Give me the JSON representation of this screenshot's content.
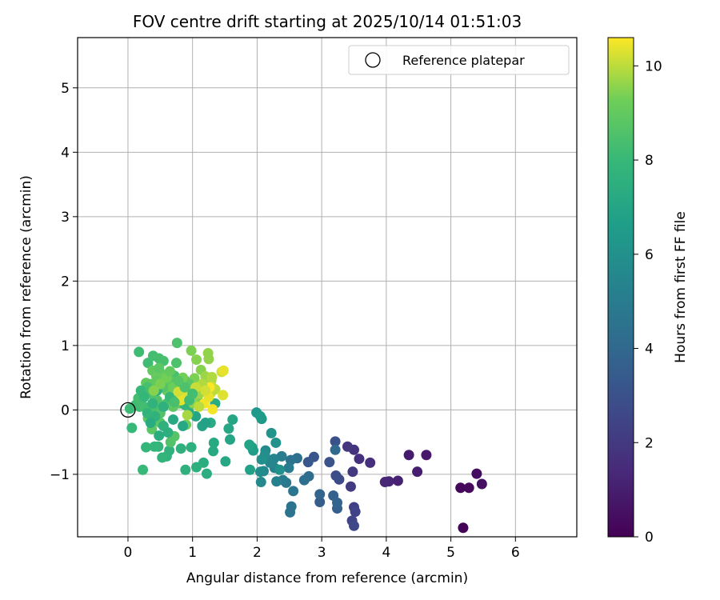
{
  "chart_data": {
    "type": "scatter",
    "title": "FOV centre drift starting at 2025/10/14 01:51:03",
    "xlabel": "Angular distance from reference (arcmin)",
    "ylabel": "Rotation from reference (arcmin)",
    "xlim": [
      -0.78,
      6.95
    ],
    "ylim": [
      -1.97,
      5.78
    ],
    "xticks": [
      0,
      1,
      2,
      3,
      4,
      5,
      6
    ],
    "yticks": [
      -1,
      0,
      1,
      2,
      3,
      4,
      5
    ],
    "grid": true,
    "colorbar": {
      "label": "Hours from first FF file",
      "range": [
        0,
        10.6
      ],
      "ticks": [
        0,
        2,
        4,
        6,
        8,
        10
      ],
      "colormap": "viridis"
    },
    "legend": {
      "position": "top-right",
      "entries": [
        "Reference platepar"
      ]
    },
    "reference_point": {
      "x": 0,
      "y": 0,
      "label": "Reference platepar"
    },
    "series": [
      {
        "name": "FOV centre",
        "points": [
          [
            5.19,
            -1.83,
            0.1
          ],
          [
            5.15,
            -1.21,
            0.2
          ],
          [
            5.28,
            -1.21,
            0.3
          ],
          [
            5.4,
            -0.99,
            0.4
          ],
          [
            5.48,
            -1.15,
            0.5
          ],
          [
            4.62,
            -0.7,
            0.8
          ],
          [
            4.35,
            -0.7,
            0.9
          ],
          [
            4.48,
            -0.96,
            1.0
          ],
          [
            4.18,
            -1.1,
            1.1
          ],
          [
            4.04,
            -1.11,
            1.2
          ],
          [
            3.98,
            -1.12,
            1.3
          ],
          [
            3.75,
            -0.82,
            1.6
          ],
          [
            3.58,
            -0.76,
            1.7
          ],
          [
            3.5,
            -0.62,
            1.8
          ],
          [
            3.4,
            -0.57,
            1.9
          ],
          [
            3.48,
            -0.96,
            2.0
          ],
          [
            3.45,
            -1.19,
            2.1
          ],
          [
            3.5,
            -1.51,
            2.3
          ],
          [
            3.52,
            -1.58,
            2.4
          ],
          [
            3.47,
            -1.72,
            2.5
          ],
          [
            3.5,
            -1.8,
            2.6
          ],
          [
            3.27,
            -1.08,
            2.7
          ],
          [
            3.22,
            -1.02,
            2.8
          ],
          [
            3.21,
            -0.49,
            3.0
          ],
          [
            3.12,
            -0.81,
            3.1
          ],
          [
            2.88,
            -0.73,
            3.2
          ],
          [
            2.79,
            -0.81,
            3.3
          ],
          [
            2.97,
            -1.43,
            3.5
          ],
          [
            3.24,
            -1.53,
            3.6
          ],
          [
            3.18,
            -1.33,
            3.7
          ],
          [
            3.24,
            -1.44,
            3.8
          ],
          [
            2.97,
            -1.31,
            3.9
          ],
          [
            3.21,
            -0.62,
            4.1
          ],
          [
            2.8,
            -1.03,
            4.2
          ],
          [
            2.73,
            -1.09,
            4.3
          ],
          [
            2.62,
            -0.75,
            4.4
          ],
          [
            2.52,
            -0.78,
            4.5
          ],
          [
            2.53,
            -1.5,
            4.6
          ],
          [
            2.51,
            -1.59,
            4.6
          ],
          [
            2.56,
            -1.26,
            4.7
          ],
          [
            2.45,
            -1.13,
            4.8
          ],
          [
            2.4,
            -1.09,
            4.9
          ],
          [
            2.49,
            -0.9,
            5.0
          ],
          [
            2.38,
            -0.72,
            5.1
          ],
          [
            2.3,
            -1.11,
            5.2
          ],
          [
            2.27,
            -0.9,
            5.3
          ],
          [
            2.26,
            -0.76,
            5.4
          ],
          [
            2.2,
            -0.82,
            5.5
          ],
          [
            2.1,
            -0.95,
            5.5
          ],
          [
            2.06,
            -1.12,
            5.6
          ],
          [
            2.13,
            -0.63,
            5.7
          ],
          [
            2.05,
            -0.96,
            5.8
          ],
          [
            2.12,
            -0.7,
            5.9
          ],
          [
            2.07,
            -0.77,
            6.0
          ],
          [
            2.35,
            -0.93,
            6.0
          ],
          [
            2.29,
            -0.51,
            6.1
          ],
          [
            2.22,
            -0.36,
            6.2
          ],
          [
            2.07,
            -0.14,
            6.3
          ],
          [
            1.99,
            -0.04,
            6.4
          ],
          [
            2.05,
            -0.1,
            6.5
          ],
          [
            1.94,
            -0.63,
            6.6
          ],
          [
            1.92,
            -0.58,
            6.7
          ],
          [
            1.89,
            -0.93,
            6.8
          ],
          [
            1.88,
            -0.54,
            6.9
          ],
          [
            1.62,
            -0.15,
            7.0
          ],
          [
            1.58,
            -0.46,
            7.0
          ],
          [
            1.56,
            -0.29,
            7.1
          ],
          [
            1.51,
            -0.8,
            7.1
          ],
          [
            1.33,
            -0.51,
            7.2
          ],
          [
            1.32,
            -0.64,
            7.2
          ],
          [
            1.28,
            -0.2,
            7.3
          ],
          [
            1.35,
            0.1,
            7.3
          ],
          [
            1.22,
            -0.99,
            7.4
          ],
          [
            1.17,
            -0.82,
            7.4
          ],
          [
            1.06,
            -0.89,
            7.5
          ],
          [
            0.98,
            -0.58,
            7.5
          ],
          [
            0.89,
            -0.93,
            7.6
          ],
          [
            0.82,
            -0.6,
            7.6
          ],
          [
            0.64,
            -0.63,
            7.7
          ],
          [
            0.6,
            -0.72,
            7.7
          ],
          [
            0.53,
            -0.74,
            7.8
          ],
          [
            0.47,
            -0.57,
            7.8
          ],
          [
            0.41,
            -0.57,
            7.9
          ],
          [
            0.28,
            -0.58,
            7.9
          ],
          [
            0.23,
            -0.93,
            8.0
          ],
          [
            0.06,
            -0.28,
            8.0
          ],
          [
            0.03,
            0.02,
            8.1
          ],
          [
            0.18,
            0.05,
            8.1
          ],
          [
            0.17,
            0.9,
            8.2
          ],
          [
            0.31,
            0.73,
            8.2
          ],
          [
            0.39,
            0.84,
            8.3
          ],
          [
            0.48,
            0.8,
            8.3
          ],
          [
            0.55,
            0.76,
            8.4
          ],
          [
            0.72,
            0.53,
            8.4
          ],
          [
            0.76,
            1.04,
            8.5
          ],
          [
            0.75,
            0.73,
            8.5
          ],
          [
            0.88,
            0.46,
            8.6
          ],
          [
            0.66,
            -0.5,
            8.6
          ],
          [
            0.72,
            -0.41,
            8.7
          ],
          [
            0.5,
            -0.2,
            8.7
          ],
          [
            0.37,
            -0.3,
            8.8
          ],
          [
            0.4,
            -0.18,
            8.8
          ],
          [
            0.31,
            -0.13,
            8.9
          ],
          [
            0.2,
            0.21,
            8.9
          ],
          [
            0.28,
            0.42,
            9.0
          ],
          [
            0.38,
            0.61,
            9.0
          ],
          [
            0.44,
            0.52,
            9.1
          ],
          [
            0.6,
            0.3,
            9.1
          ],
          [
            0.9,
            -0.23,
            9.2
          ],
          [
            0.94,
            0.03,
            9.2
          ],
          [
            0.99,
            0.2,
            9.3
          ],
          [
            1.08,
            0.15,
            9.3
          ],
          [
            1.03,
            0.49,
            9.4
          ],
          [
            0.98,
            0.92,
            9.4
          ],
          [
            1.06,
            0.78,
            9.5
          ],
          [
            1.13,
            0.62,
            9.5
          ],
          [
            1.24,
            0.88,
            9.6
          ],
          [
            1.25,
            0.79,
            9.6
          ],
          [
            1.2,
            0.52,
            9.7
          ],
          [
            1.21,
            0.38,
            9.8
          ],
          [
            1.29,
            0.46,
            9.8
          ],
          [
            1.3,
            0.51,
            9.9
          ],
          [
            1.28,
            0.26,
            10.0
          ],
          [
            1.35,
            0.32,
            10.0
          ],
          [
            1.3,
            0.36,
            10.1
          ],
          [
            1.45,
            0.59,
            10.2
          ],
          [
            1.47,
            0.23,
            10.3
          ],
          [
            1.48,
            0.61,
            10.4
          ],
          [
            1.31,
            0.01,
            10.5
          ],
          [
            1.26,
            0.35,
            10.6
          ],
          [
            0.12,
            0.08,
            8.2
          ],
          [
            0.16,
            0.18,
            8.3
          ],
          [
            0.25,
            0.3,
            8.4
          ],
          [
            0.35,
            0.25,
            8.5
          ],
          [
            0.45,
            0.15,
            8.6
          ],
          [
            0.55,
            0.35,
            8.7
          ],
          [
            0.65,
            0.45,
            8.8
          ],
          [
            0.35,
            0.4,
            8.9
          ],
          [
            0.45,
            0.45,
            9.0
          ],
          [
            0.55,
            0.55,
            9.1
          ],
          [
            0.25,
            0.05,
            8.3
          ],
          [
            0.4,
            0.05,
            8.4
          ],
          [
            0.6,
            0.1,
            8.5
          ],
          [
            0.75,
            0.2,
            8.6
          ],
          [
            0.85,
            0.3,
            8.7
          ],
          [
            0.95,
            0.4,
            8.8
          ],
          [
            0.7,
            0.05,
            8.9
          ],
          [
            0.8,
            0.1,
            9.0
          ],
          [
            0.5,
            -0.05,
            8.6
          ],
          [
            0.3,
            0.35,
            8.4
          ],
          [
            0.42,
            -0.1,
            7.7
          ],
          [
            0.55,
            -0.25,
            7.6
          ],
          [
            0.62,
            -0.35,
            7.5
          ],
          [
            0.48,
            -0.4,
            7.4
          ],
          [
            0.35,
            -0.2,
            7.3
          ],
          [
            0.7,
            -0.15,
            7.2
          ],
          [
            0.85,
            -0.25,
            7.1
          ],
          [
            0.3,
            -0.05,
            7.8
          ],
          [
            0.2,
            0.3,
            8.0
          ],
          [
            0.25,
            0.2,
            7.9
          ],
          [
            0.65,
            0.2,
            8.0
          ],
          [
            0.75,
            0.35,
            7.9
          ],
          [
            0.38,
            0.1,
            7.7
          ],
          [
            0.55,
            0.05,
            7.6
          ],
          [
            0.45,
            0.3,
            7.5
          ],
          [
            1.05,
            -0.1,
            7.0
          ],
          [
            1.15,
            -0.25,
            6.9
          ],
          [
            1.2,
            -0.2,
            6.8
          ],
          [
            0.95,
            -0.05,
            7.4
          ],
          [
            0.88,
            0.08,
            7.8
          ],
          [
            0.7,
            0.35,
            9.2
          ],
          [
            0.85,
            0.5,
            9.3
          ],
          [
            0.95,
            0.3,
            9.4
          ],
          [
            1.0,
            0.12,
            9.6
          ],
          [
            1.1,
            0.25,
            9.7
          ],
          [
            1.15,
            0.4,
            9.9
          ],
          [
            1.05,
            0.35,
            10.1
          ],
          [
            0.9,
            0.2,
            10.3
          ],
          [
            0.82,
            0.15,
            10.4
          ],
          [
            0.78,
            0.28,
            10.2
          ],
          [
            1.18,
            0.1,
            10.5
          ],
          [
            1.25,
            0.2,
            10.4
          ],
          [
            1.2,
            0.3,
            10.2
          ],
          [
            1.1,
            0.05,
            10.0
          ],
          [
            0.92,
            -0.08,
            9.8
          ],
          [
            0.6,
            0.5,
            9.3
          ],
          [
            0.5,
            0.4,
            9.4
          ],
          [
            0.4,
            0.3,
            9.5
          ],
          [
            0.65,
            0.6,
            9.0
          ],
          [
            0.48,
            0.65,
            8.8
          ],
          [
            0.95,
            0.15,
            8.2
          ],
          [
            1.0,
            0.25,
            8.3
          ],
          [
            0.88,
            0.35,
            8.5
          ],
          [
            0.78,
            0.45,
            8.7
          ],
          [
            0.72,
            0.12,
            8.4
          ]
        ]
      }
    ]
  }
}
